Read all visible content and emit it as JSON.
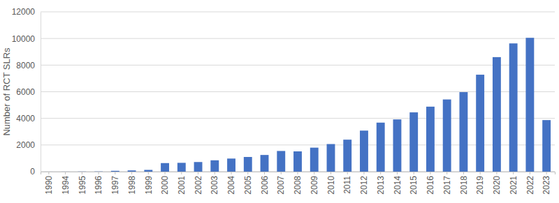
{
  "chart_data": {
    "type": "bar",
    "y_label": "Number of RCT SLRs",
    "categories": [
      "1990",
      "1994",
      "1995",
      "1996",
      "1997",
      "1998",
      "1999",
      "2000",
      "2001",
      "2002",
      "2003",
      "2004",
      "2005",
      "2006",
      "2007",
      "2008",
      "2009",
      "2010",
      "2011",
      "2012",
      "2013",
      "2014",
      "2015",
      "2016",
      "2017",
      "2018",
      "2019",
      "2020",
      "2021",
      "2022",
      "2023"
    ],
    "values": [
      2,
      5,
      10,
      15,
      60,
      90,
      130,
      640,
      660,
      720,
      850,
      980,
      1100,
      1250,
      1550,
      1520,
      1800,
      2070,
      2400,
      3080,
      3680,
      3920,
      4450,
      4880,
      5420,
      5970,
      7280,
      8600,
      9630,
      10050,
      3870
    ],
    "color": "#4472c4",
    "ylim": [
      0,
      12000
    ],
    "yticks": [
      0,
      2000,
      4000,
      6000,
      8000,
      10000,
      12000
    ],
    "grid": true
  }
}
